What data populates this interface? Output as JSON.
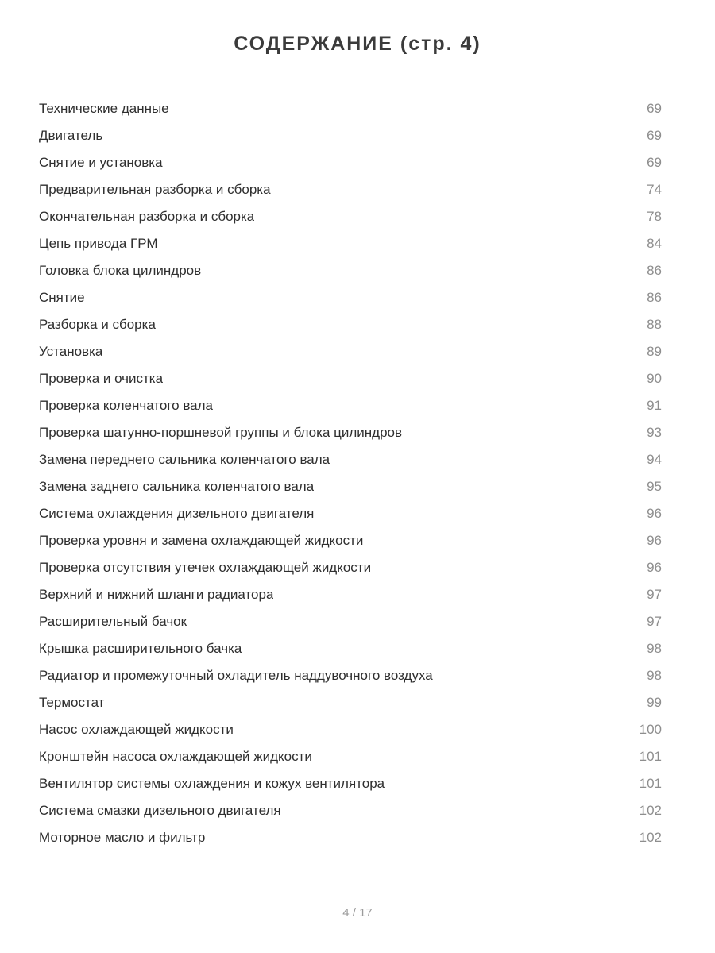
{
  "page": {
    "title": "СОДЕРЖАНИЕ (стр. 4)",
    "footer": "4 / 17"
  },
  "toc": {
    "entries": [
      {
        "label": "Технические данные",
        "page": "69"
      },
      {
        "label": "Двигатель",
        "page": "69"
      },
      {
        "label": "Снятие и установка",
        "page": "69"
      },
      {
        "label": "Предварительная разборка и сборка",
        "page": "74"
      },
      {
        "label": "Окончательная разборка и сборка",
        "page": "78"
      },
      {
        "label": "Цепь привода ГРМ",
        "page": "84"
      },
      {
        "label": "Головка блока цилиндров",
        "page": "86"
      },
      {
        "label": "Снятие",
        "page": "86"
      },
      {
        "label": "Разборка и сборка",
        "page": "88"
      },
      {
        "label": "Установка",
        "page": "89"
      },
      {
        "label": "Проверка и очистка",
        "page": "90"
      },
      {
        "label": "Проверка коленчатого вала",
        "page": "91"
      },
      {
        "label": "Проверка шатунно-поршневой группы и блока цилиндров",
        "page": "93"
      },
      {
        "label": "Замена переднего сальника коленчатого вала",
        "page": "94"
      },
      {
        "label": "Замена заднего сальника коленчатого вала",
        "page": "95"
      },
      {
        "label": "Система охлаждения дизельного двигателя",
        "page": "96"
      },
      {
        "label": "Проверка уровня и замена охлаждающей жидкости",
        "page": "96"
      },
      {
        "label": "Проверка отсутствия утечек охлаждающей жидкости",
        "page": "96"
      },
      {
        "label": "Верхний и нижний шланги радиатора",
        "page": "97"
      },
      {
        "label": "Расширительный бачок",
        "page": "97"
      },
      {
        "label": "Крышка расширительного бачка",
        "page": "98"
      },
      {
        "label": "Радиатор и промежуточный охладитель наддувочного воздуха",
        "page": "98"
      },
      {
        "label": "Термостат",
        "page": "99"
      },
      {
        "label": "Насос охлаждающей жидкости",
        "page": "100"
      },
      {
        "label": "Кронштейн насоса охлаждающей жидкости",
        "page": "101"
      },
      {
        "label": "Вентилятор системы охлаждения и кожух вентилятора",
        "page": "101"
      },
      {
        "label": "Система смазки дизельного двигателя",
        "page": "102"
      },
      {
        "label": "Моторное масло и фильтр",
        "page": "102"
      }
    ]
  }
}
